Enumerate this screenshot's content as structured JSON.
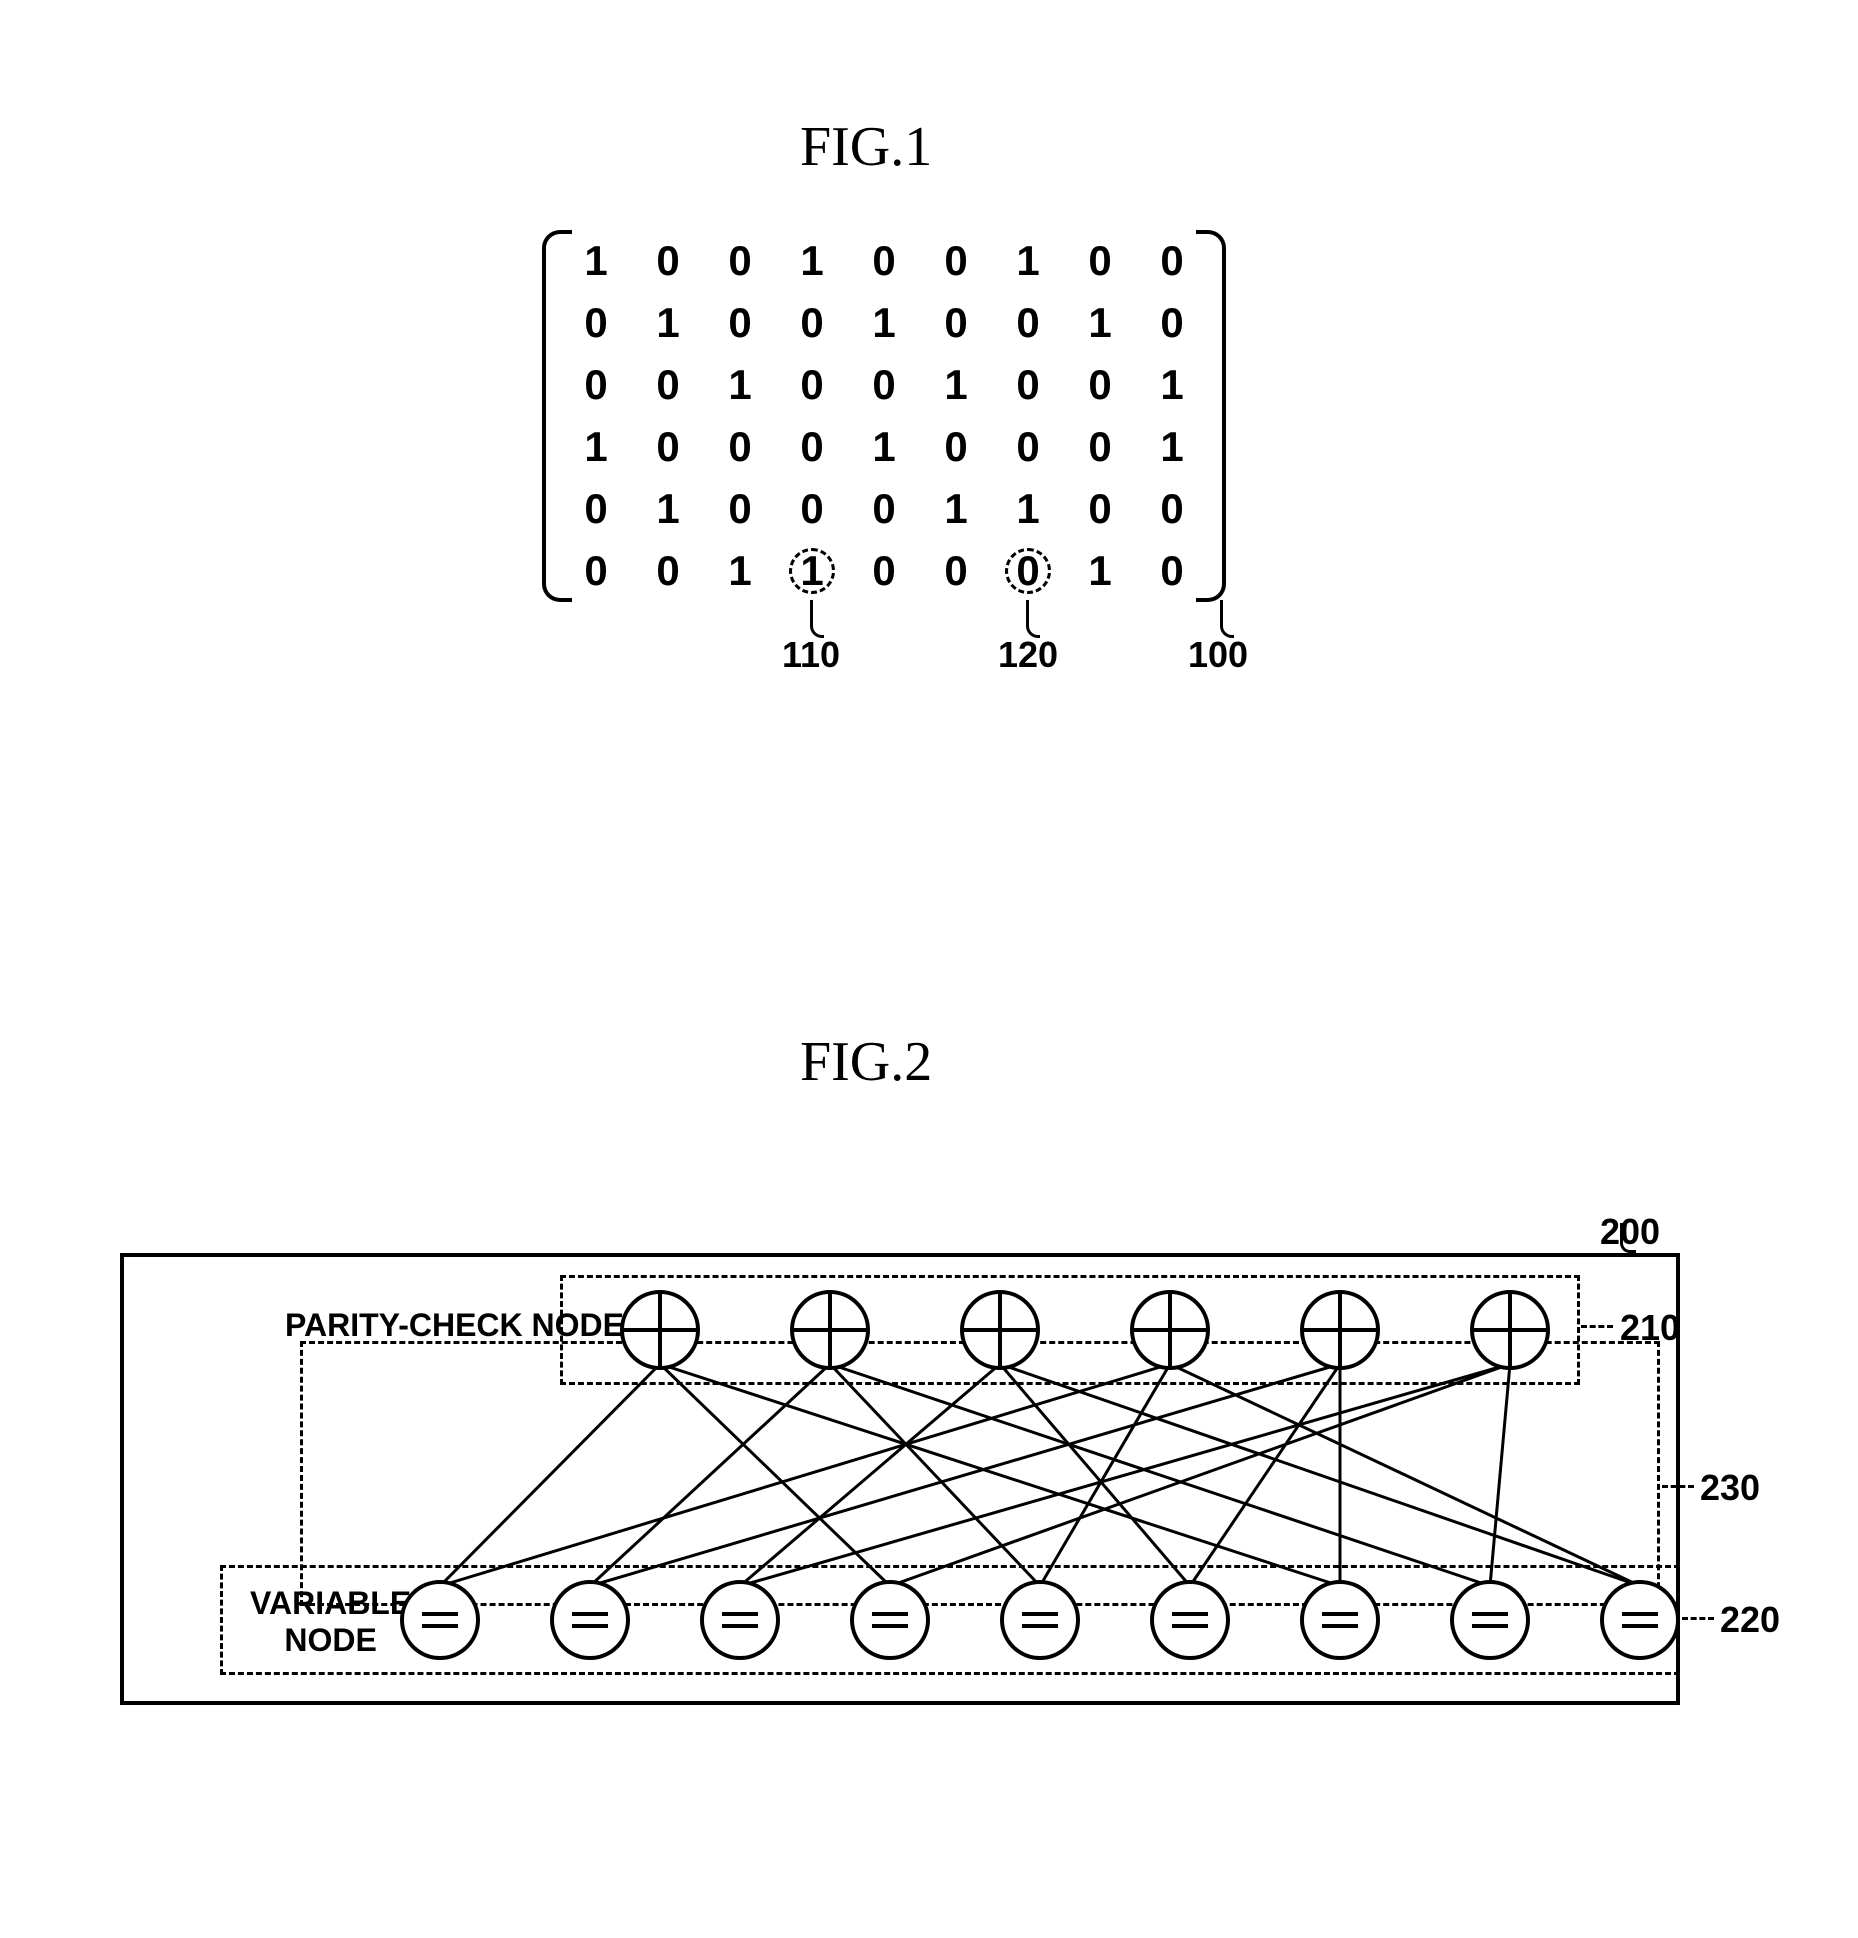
{
  "fig1": {
    "title": "FIG.1",
    "matrix": [
      [
        1,
        0,
        0,
        1,
        0,
        0,
        1,
        0,
        0
      ],
      [
        0,
        1,
        0,
        0,
        1,
        0,
        0,
        1,
        0
      ],
      [
        0,
        0,
        1,
        0,
        0,
        1,
        0,
        0,
        1
      ],
      [
        1,
        0,
        0,
        0,
        1,
        0,
        0,
        0,
        1
      ],
      [
        0,
        1,
        0,
        0,
        0,
        1,
        1,
        0,
        0
      ],
      [
        0,
        0,
        1,
        1,
        0,
        0,
        0,
        1,
        0
      ]
    ],
    "circled_cells": [
      [
        5,
        3
      ],
      [
        5,
        6
      ]
    ],
    "callouts": {
      "c110": "110",
      "c120": "120",
      "c100": "100"
    },
    "font_family": "Arial",
    "cell_fontsize": 42,
    "text_color": "#000000",
    "background_color": "#ffffff"
  },
  "fig2": {
    "title": "FIG.2",
    "parity_label": "PARITY-CHECK NODE",
    "variable_label_l1": "VARIABLE",
    "variable_label_l2": "NODE",
    "num_parity": 6,
    "num_variable": 9,
    "edges": [
      [
        0,
        0
      ],
      [
        0,
        3
      ],
      [
        0,
        6
      ],
      [
        1,
        1
      ],
      [
        1,
        4
      ],
      [
        1,
        7
      ],
      [
        2,
        2
      ],
      [
        2,
        5
      ],
      [
        2,
        8
      ],
      [
        3,
        0
      ],
      [
        3,
        4
      ],
      [
        3,
        8
      ],
      [
        4,
        1
      ],
      [
        4,
        5
      ],
      [
        4,
        6
      ],
      [
        5,
        2
      ],
      [
        5,
        3
      ],
      [
        5,
        7
      ]
    ],
    "refs": {
      "r200": "200",
      "r210": "210",
      "r220": "220",
      "r230": "230"
    },
    "node_stroke": "#000000",
    "node_fill": "#ffffff",
    "line_color": "#000000",
    "line_width": 3,
    "node_radius": 38
  }
}
